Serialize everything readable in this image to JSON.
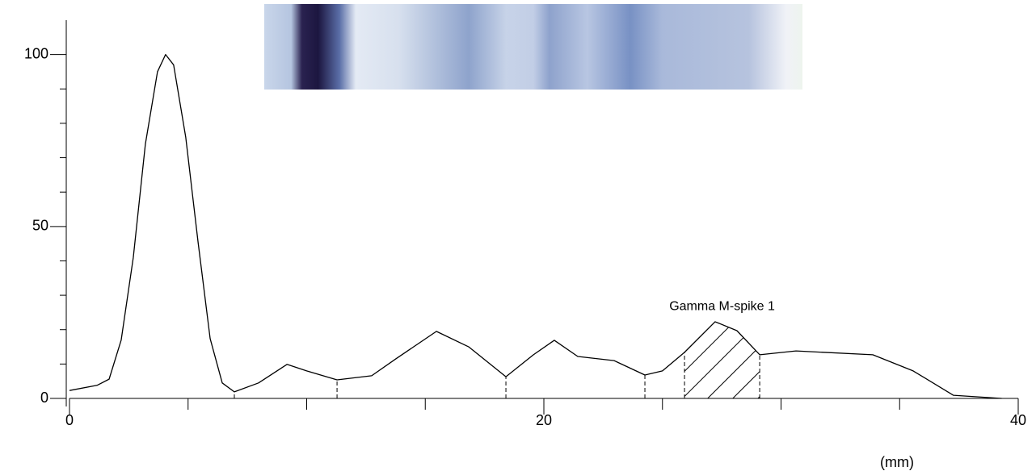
{
  "chart_data": {
    "type": "line",
    "x": [
      0,
      1.16,
      1.67,
      2.18,
      2.69,
      3.2,
      3.71,
      4.05,
      4.39,
      4.9,
      5.42,
      5.93,
      6.44,
      6.95,
      7.97,
      9.17,
      10.0,
      11.28,
      12.74,
      13.76,
      15.47,
      16.83,
      18.4,
      19.56,
      20.44,
      21.43,
      22.96,
      24.26,
      25.0,
      25.93,
      27.22,
      28.14,
      29.1,
      30.63,
      33.87,
      35.57,
      37.27,
      39.3
    ],
    "values": [
      2.3,
      3.8,
      5.6,
      17,
      41,
      74,
      95,
      100,
      97,
      76,
      45.5,
      17.4,
      4.5,
      1.9,
      4.5,
      9.9,
      8,
      5.4,
      6.6,
      11.5,
      19.5,
      15,
      6.3,
      12.7,
      16.9,
      12.2,
      11,
      6.8,
      8,
      13.4,
      22.3,
      19.7,
      12.7,
      13.8,
      12.7,
      8,
      0.9,
      0
    ],
    "color": "#000000",
    "xlim": [
      0,
      40
    ],
    "xticks": [
      0,
      20,
      40
    ],
    "xminor_ticks": [
      5,
      10,
      15,
      25,
      30,
      35
    ],
    "ylim": [
      0,
      110
    ],
    "yticks": [
      0,
      50,
      100
    ],
    "yminor_ticks": [
      10,
      20,
      30,
      40,
      60,
      70,
      80,
      90
    ],
    "xlabel": "(mm)",
    "dividers": [
      6.95,
      11.28,
      18.4,
      24.26,
      25.93,
      29.1
    ],
    "m_spike": {
      "label": "Gamma M-spike 1",
      "range": [
        25.93,
        29.1
      ]
    }
  }
}
